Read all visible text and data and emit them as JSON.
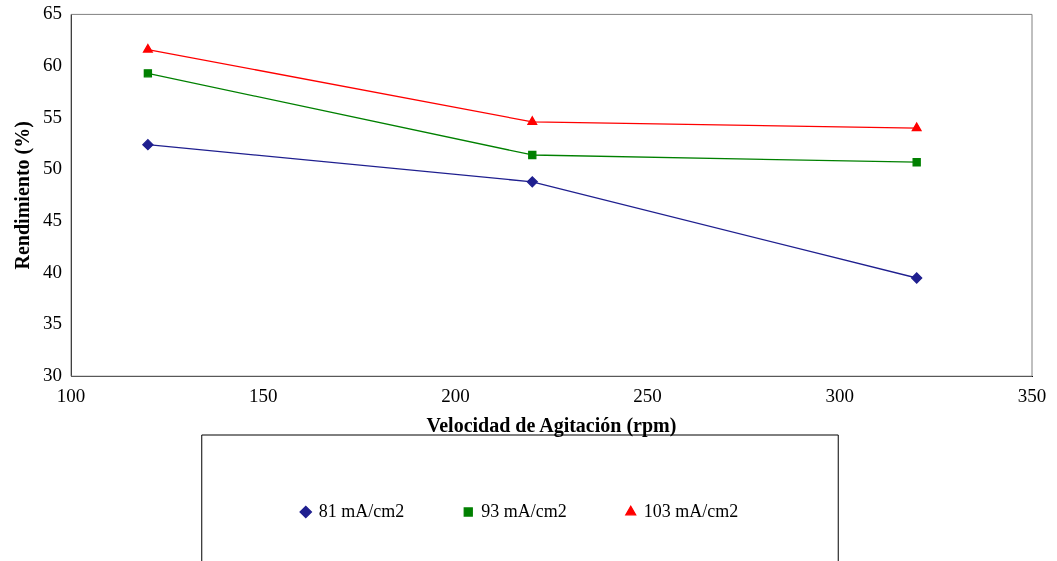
{
  "chart_data": {
    "type": "line",
    "xlabel": "Velocidad de Agitación (rpm)",
    "ylabel": "Rendimiento (%)",
    "x": [
      120,
      220,
      320
    ],
    "series": [
      {
        "name": "81 mA/cm2",
        "color": "#1f1f8f",
        "marker": "diamond",
        "values": [
          52.4,
          48.8,
          39.5
        ]
      },
      {
        "name": "93 mA/cm2",
        "color": "#008000",
        "marker": "square",
        "values": [
          59.3,
          51.4,
          50.7
        ]
      },
      {
        "name": "103 mA/cm2",
        "color": "#ff0000",
        "marker": "triangle",
        "values": [
          61.6,
          54.6,
          54.0
        ]
      }
    ],
    "xlim": [
      100,
      350
    ],
    "xticks": [
      100,
      150,
      200,
      250,
      300,
      350
    ],
    "ylim": [
      30,
      65
    ],
    "yticks": [
      30,
      35,
      40,
      45,
      50,
      55,
      60,
      65
    ],
    "grid": false,
    "legend": "bottom",
    "line_style": "solid"
  }
}
